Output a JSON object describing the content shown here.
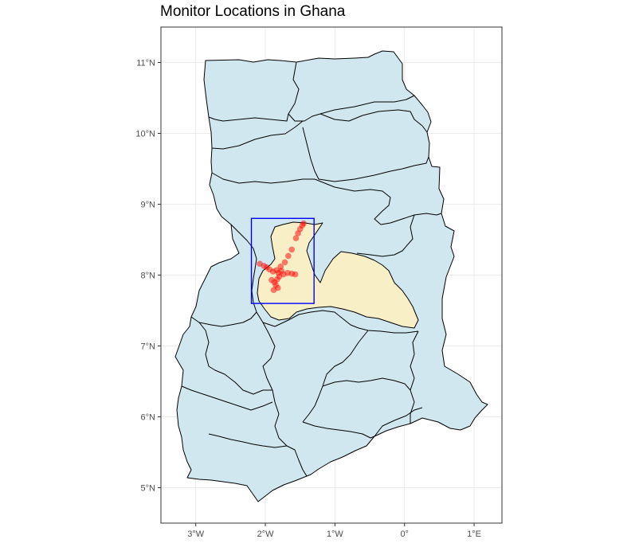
{
  "title": "Monitor Locations in Ghana",
  "colors": {
    "background": "#ffffff",
    "grid": "#ebebeb",
    "panel_border": "#333333",
    "region_fill": "#d1e7ef",
    "highlight_fill": "#f8efc6",
    "region_stroke": "#000000",
    "bbox_stroke": "#0000ff",
    "point": "#ff0000"
  },
  "chart_data": {
    "type": "scatter",
    "map": "Ghana administrative regions",
    "title": "Monitor Locations in Ghana",
    "xlim": [
      -3.5,
      1.4
    ],
    "ylim": [
      4.5,
      11.5
    ],
    "x_ticks": [
      {
        "value": -3,
        "label": "3°W"
      },
      {
        "value": -2,
        "label": "2°W"
      },
      {
        "value": -1,
        "label": "1°W"
      },
      {
        "value": 0,
        "label": "0°"
      },
      {
        "value": 1,
        "label": "1°E"
      }
    ],
    "y_ticks": [
      {
        "value": 5,
        "label": "5°N"
      },
      {
        "value": 6,
        "label": "6°N"
      },
      {
        "value": 7,
        "label": "7°N"
      },
      {
        "value": 8,
        "label": "8°N"
      },
      {
        "value": 9,
        "label": "9°N"
      },
      {
        "value": 10,
        "label": "10°N"
      },
      {
        "value": 11,
        "label": "11°N"
      }
    ],
    "grid": true,
    "bounding_box": {
      "lon": [
        -2.2,
        -1.3
      ],
      "lat": [
        7.6,
        8.8
      ]
    },
    "monitors": [
      {
        "lon": -1.45,
        "lat": 8.73
      },
      {
        "lon": -1.47,
        "lat": 8.7
      },
      {
        "lon": -1.5,
        "lat": 8.65
      },
      {
        "lon": -1.53,
        "lat": 8.59
      },
      {
        "lon": -1.56,
        "lat": 8.52
      },
      {
        "lon": -1.62,
        "lat": 8.36
      },
      {
        "lon": -1.67,
        "lat": 8.27
      },
      {
        "lon": -1.72,
        "lat": 8.18
      },
      {
        "lon": -1.78,
        "lat": 8.12
      },
      {
        "lon": -2.08,
        "lat": 8.16
      },
      {
        "lon": -2.02,
        "lat": 8.13
      },
      {
        "lon": -1.98,
        "lat": 8.11
      },
      {
        "lon": -1.94,
        "lat": 8.08
      },
      {
        "lon": -1.89,
        "lat": 8.05
      },
      {
        "lon": -1.84,
        "lat": 8.07
      },
      {
        "lon": -1.81,
        "lat": 8.03
      },
      {
        "lon": -1.77,
        "lat": 8.06
      },
      {
        "lon": -1.74,
        "lat": 8.01
      },
      {
        "lon": -1.68,
        "lat": 8.03
      },
      {
        "lon": -1.62,
        "lat": 8.02
      },
      {
        "lon": -1.57,
        "lat": 8.01
      },
      {
        "lon": -1.8,
        "lat": 7.98
      },
      {
        "lon": -1.83,
        "lat": 7.94
      },
      {
        "lon": -1.87,
        "lat": 7.9
      },
      {
        "lon": -1.91,
        "lat": 7.93
      },
      {
        "lon": -1.85,
        "lat": 7.86
      },
      {
        "lon": -1.82,
        "lat": 7.82
      },
      {
        "lon": -1.88,
        "lat": 7.79
      }
    ]
  }
}
